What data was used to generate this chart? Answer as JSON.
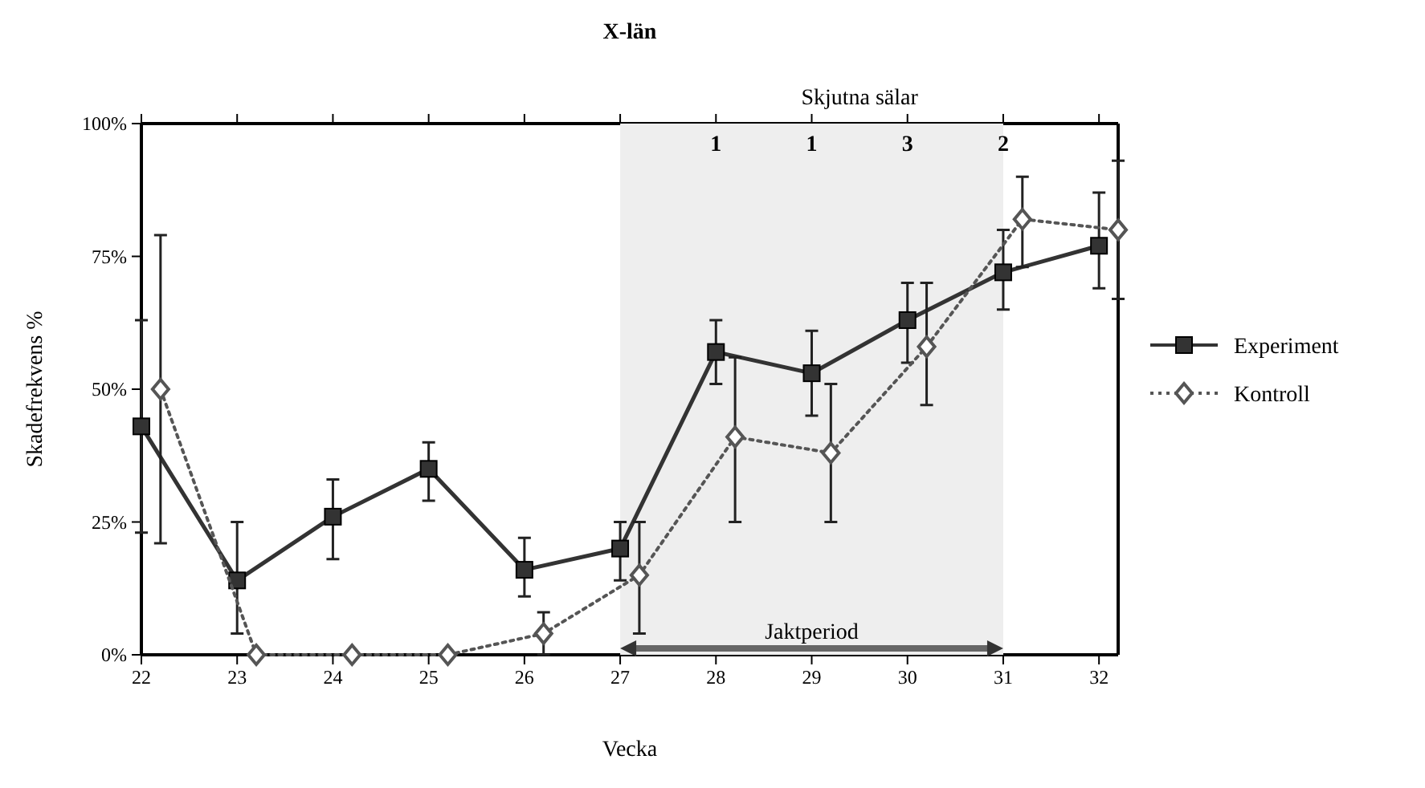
{
  "chart_data": {
    "type": "line",
    "title": "X-län",
    "xlabel": "Vecka",
    "ylabel": "Skadefrekvens %",
    "xlim": [
      22,
      32.2
    ],
    "xticks": [
      22,
      23,
      24,
      25,
      26,
      27,
      28,
      29,
      30,
      31,
      32
    ],
    "ylim": [
      0,
      100
    ],
    "yticks": [
      {
        "value": 0,
        "label": "0%"
      },
      {
        "value": 25,
        "label": "25%"
      },
      {
        "value": 50,
        "label": "50%"
      },
      {
        "value": 75,
        "label": "75%"
      },
      {
        "value": 100,
        "label": "100%"
      }
    ],
    "grid": false,
    "legend": "right",
    "annotations": [
      "Skjutna sälar",
      "1",
      "1",
      "3",
      "2"
    ],
    "bands": [
      {
        "axis": "x",
        "from": 27,
        "to": 31,
        "label": "Jaktperiod",
        "color": "#eeeeee"
      }
    ],
    "series": [
      {
        "name": "Experiment",
        "color": "#333333",
        "marker": "square",
        "line_style": "solid",
        "x": [
          22,
          23,
          24,
          25,
          26,
          27,
          28,
          29,
          30,
          31,
          32
        ],
        "values": [
          43,
          14,
          26,
          35,
          16,
          20,
          57,
          53,
          63,
          72,
          77
        ],
        "errors": [
          [
            23,
            63
          ],
          [
            4,
            25
          ],
          [
            18,
            33
          ],
          [
            29,
            40
          ],
          [
            11,
            22
          ],
          [
            14,
            25
          ],
          [
            51,
            63
          ],
          [
            45,
            61
          ],
          [
            55,
            70
          ],
          [
            65,
            80
          ],
          [
            69,
            87
          ]
        ]
      },
      {
        "name": "Kontroll",
        "color": "#555555",
        "marker": "diamond",
        "line_style": "dotted",
        "x": [
          22.2,
          23.2,
          24.2,
          25.2,
          26.2,
          27.2,
          28.2,
          29.2,
          30.2,
          31.2,
          32.2
        ],
        "values": [
          50,
          0,
          0,
          0,
          4,
          15,
          41,
          38,
          58,
          82,
          80
        ],
        "errors": [
          [
            21,
            79
          ],
          null,
          null,
          null,
          [
            0,
            8
          ],
          [
            4,
            25
          ],
          [
            25,
            56
          ],
          [
            25,
            51
          ],
          [
            47,
            70
          ],
          [
            73,
            90
          ],
          [
            67,
            93
          ]
        ]
      }
    ]
  }
}
